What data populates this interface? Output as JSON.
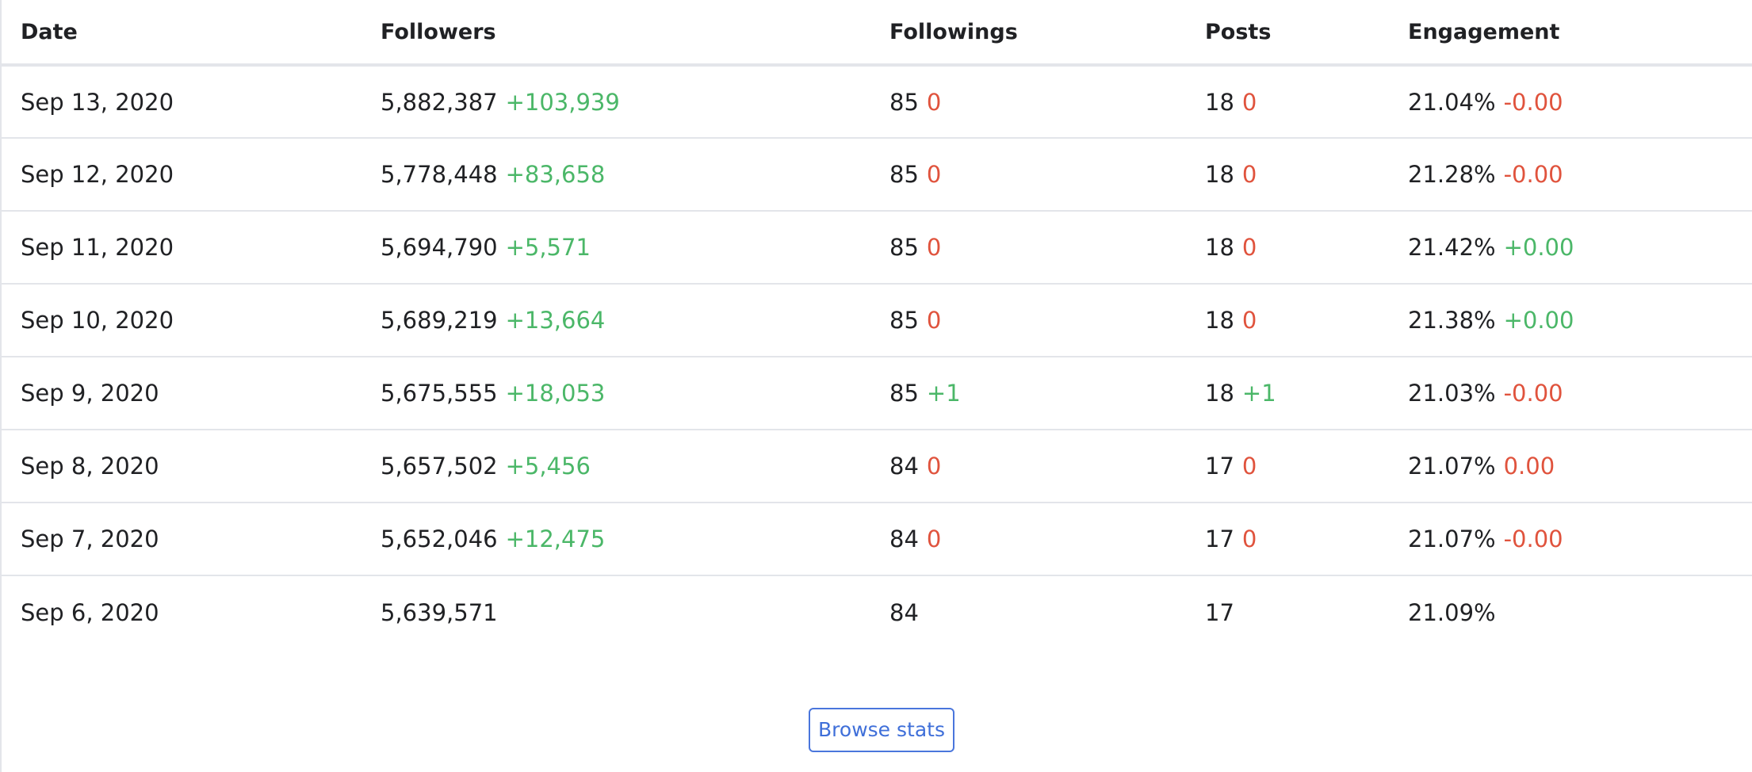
{
  "table": {
    "headers": {
      "date": "Date",
      "followers": "Followers",
      "followings": "Followings",
      "posts": "Posts",
      "engagement": "Engagement"
    },
    "rows": [
      {
        "date": "Sep 13, 2020",
        "followers": "5,882,387",
        "followers_delta": "+103,939",
        "followings": "85",
        "followings_delta": "0",
        "posts": "18",
        "posts_delta": "0",
        "engagement": "21.04%",
        "engagement_delta": "-0.00"
      },
      {
        "date": "Sep 12, 2020",
        "followers": "5,778,448",
        "followers_delta": "+83,658",
        "followings": "85",
        "followings_delta": "0",
        "posts": "18",
        "posts_delta": "0",
        "engagement": "21.28%",
        "engagement_delta": "-0.00"
      },
      {
        "date": "Sep 11, 2020",
        "followers": "5,694,790",
        "followers_delta": "+5,571",
        "followings": "85",
        "followings_delta": "0",
        "posts": "18",
        "posts_delta": "0",
        "engagement": "21.42%",
        "engagement_delta": "+0.00"
      },
      {
        "date": "Sep 10, 2020",
        "followers": "5,689,219",
        "followers_delta": "+13,664",
        "followings": "85",
        "followings_delta": "0",
        "posts": "18",
        "posts_delta": "0",
        "engagement": "21.38%",
        "engagement_delta": "+0.00"
      },
      {
        "date": "Sep 9, 2020",
        "followers": "5,675,555",
        "followers_delta": "+18,053",
        "followings": "85",
        "followings_delta": "+1",
        "posts": "18",
        "posts_delta": "+1",
        "engagement": "21.03%",
        "engagement_delta": "-0.00"
      },
      {
        "date": "Sep 8, 2020",
        "followers": "5,657,502",
        "followers_delta": "+5,456",
        "followings": "84",
        "followings_delta": "0",
        "posts": "17",
        "posts_delta": "0",
        "engagement": "21.07%",
        "engagement_delta": "0.00"
      },
      {
        "date": "Sep 7, 2020",
        "followers": "5,652,046",
        "followers_delta": "+12,475",
        "followings": "84",
        "followings_delta": "0",
        "posts": "17",
        "posts_delta": "0",
        "engagement": "21.07%",
        "engagement_delta": "-0.00"
      },
      {
        "date": "Sep 6, 2020",
        "followers": "5,639,571",
        "followers_delta": "",
        "followings": "84",
        "followings_delta": "",
        "posts": "17",
        "posts_delta": "",
        "engagement": "21.09%",
        "engagement_delta": ""
      }
    ]
  },
  "browse_button": {
    "label": "Browse stats"
  },
  "colors": {
    "positive": "#4bb768",
    "negative": "#e0533d",
    "accent": "#4a76dc",
    "border": "#e3e5ea",
    "text": "#202124"
  }
}
